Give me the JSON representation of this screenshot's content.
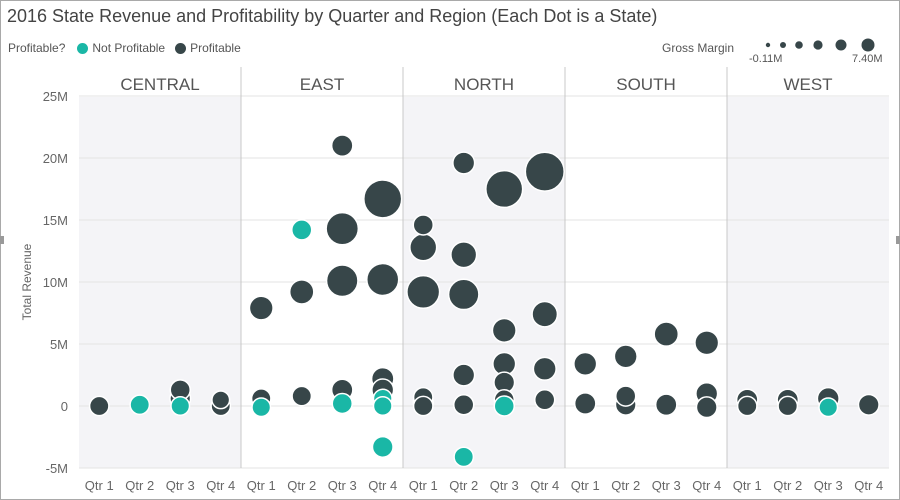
{
  "header": {
    "title": "2016 State Revenue and Profitability by Quarter and Region (Each Dot is a State)"
  },
  "legend": {
    "label": "Profitable?",
    "items": [
      {
        "label": "Not Profitable",
        "color": "#1ab7a6"
      },
      {
        "label": "Profitable",
        "color": "#374649"
      }
    ]
  },
  "size_legend": {
    "title": "Gross Margin",
    "min_label": "-0.11M",
    "max_label": "7.40M"
  },
  "chart_data": {
    "type": "scatter",
    "title": "2016 State Revenue and Profitability by Quarter and Region (Each Dot is a State)",
    "ylabel": "Total Revenue",
    "ylim": [
      -5000000,
      25000000
    ],
    "yticks": [
      -5000000,
      0,
      5000000,
      10000000,
      15000000,
      20000000,
      25000000
    ],
    "ytick_labels": [
      "-5M",
      "0",
      "5M",
      "10M",
      "15M",
      "20M",
      "25M"
    ],
    "grid": true,
    "legend_position": "top-left",
    "regions": [
      "CENTRAL",
      "EAST",
      "NORTH",
      "SOUTH",
      "WEST"
    ],
    "quarters": [
      "Qtr 1",
      "Qtr 2",
      "Qtr 3",
      "Qtr 4"
    ],
    "colors": {
      "profitable": "#374649",
      "not_profitable": "#1ab7a6",
      "shade": "#f4f4f7"
    },
    "points": [
      {
        "region": "CENTRAL",
        "quarter": "Qtr 1",
        "revenue": 0,
        "profitable": true,
        "gross_margin": 0.4
      },
      {
        "region": "CENTRAL",
        "quarter": "Qtr 2",
        "revenue": 100000,
        "profitable": false,
        "gross_margin": 0.4
      },
      {
        "region": "CENTRAL",
        "quarter": "Qtr 3",
        "revenue": 1300000,
        "profitable": true,
        "gross_margin": 0.5
      },
      {
        "region": "CENTRAL",
        "quarter": "Qtr 3",
        "revenue": 600000,
        "profitable": true,
        "gross_margin": 0.6
      },
      {
        "region": "CENTRAL",
        "quarter": "Qtr 3",
        "revenue": 0,
        "profitable": false,
        "gross_margin": 0.3
      },
      {
        "region": "CENTRAL",
        "quarter": "Qtr 4",
        "revenue": 500000,
        "profitable": true,
        "gross_margin": 0.2
      },
      {
        "region": "CENTRAL",
        "quarter": "Qtr 4",
        "revenue": 0,
        "profitable": true,
        "gross_margin": 0.4
      },
      {
        "region": "EAST",
        "quarter": "Qtr 1",
        "revenue": 7900000,
        "profitable": true,
        "gross_margin": 1.2
      },
      {
        "region": "EAST",
        "quarter": "Qtr 1",
        "revenue": 600000,
        "profitable": true,
        "gross_margin": 0.4
      },
      {
        "region": "EAST",
        "quarter": "Qtr 1",
        "revenue": -100000,
        "profitable": false,
        "gross_margin": 0.3
      },
      {
        "region": "EAST",
        "quarter": "Qtr 2",
        "revenue": 14200000,
        "profitable": false,
        "gross_margin": 0.5
      },
      {
        "region": "EAST",
        "quarter": "Qtr 2",
        "revenue": 9200000,
        "profitable": true,
        "gross_margin": 1.3
      },
      {
        "region": "EAST",
        "quarter": "Qtr 2",
        "revenue": 800000,
        "profitable": true,
        "gross_margin": 0.4
      },
      {
        "region": "EAST",
        "quarter": "Qtr 3",
        "revenue": 21000000,
        "profitable": true,
        "gross_margin": 0.7
      },
      {
        "region": "EAST",
        "quarter": "Qtr 3",
        "revenue": 14300000,
        "profitable": true,
        "gross_margin": 3.8
      },
      {
        "region": "EAST",
        "quarter": "Qtr 3",
        "revenue": 10100000,
        "profitable": true,
        "gross_margin": 3.5
      },
      {
        "region": "EAST",
        "quarter": "Qtr 3",
        "revenue": 1300000,
        "profitable": true,
        "gross_margin": 0.7
      },
      {
        "region": "EAST",
        "quarter": "Qtr 3",
        "revenue": 200000,
        "profitable": false,
        "gross_margin": 0.5
      },
      {
        "region": "EAST",
        "quarter": "Qtr 4",
        "revenue": 16700000,
        "profitable": true,
        "gross_margin": 6.3
      },
      {
        "region": "EAST",
        "quarter": "Qtr 4",
        "revenue": 10200000,
        "profitable": true,
        "gross_margin": 3.7
      },
      {
        "region": "EAST",
        "quarter": "Qtr 4",
        "revenue": 2200000,
        "profitable": true,
        "gross_margin": 0.9
      },
      {
        "region": "EAST",
        "quarter": "Qtr 4",
        "revenue": 1300000,
        "profitable": true,
        "gross_margin": 0.8
      },
      {
        "region": "EAST",
        "quarter": "Qtr 4",
        "revenue": 600000,
        "profitable": false,
        "gross_margin": 0.3
      },
      {
        "region": "EAST",
        "quarter": "Qtr 4",
        "revenue": 0,
        "profitable": false,
        "gross_margin": 0.3
      },
      {
        "region": "EAST",
        "quarter": "Qtr 4",
        "revenue": -3300000,
        "profitable": false,
        "gross_margin": 0.6
      },
      {
        "region": "NORTH",
        "quarter": "Qtr 1",
        "revenue": 14600000,
        "profitable": true,
        "gross_margin": 0.5
      },
      {
        "region": "NORTH",
        "quarter": "Qtr 1",
        "revenue": 12800000,
        "profitable": true,
        "gross_margin": 2.0
      },
      {
        "region": "NORTH",
        "quarter": "Qtr 1",
        "revenue": 9200000,
        "profitable": true,
        "gross_margin": 4.0
      },
      {
        "region": "NORTH",
        "quarter": "Qtr 1",
        "revenue": 700000,
        "profitable": true,
        "gross_margin": 0.4
      },
      {
        "region": "NORTH",
        "quarter": "Qtr 1",
        "revenue": 300000,
        "profitable": false,
        "gross_margin": 0.5
      },
      {
        "region": "NORTH",
        "quarter": "Qtr 1",
        "revenue": 0,
        "profitable": true,
        "gross_margin": 0.4
      },
      {
        "region": "NORTH",
        "quarter": "Qtr 2",
        "revenue": 19600000,
        "profitable": true,
        "gross_margin": 0.8
      },
      {
        "region": "NORTH",
        "quarter": "Qtr 2",
        "revenue": 12200000,
        "profitable": true,
        "gross_margin": 1.7
      },
      {
        "region": "NORTH",
        "quarter": "Qtr 2",
        "revenue": 9000000,
        "profitable": true,
        "gross_margin": 3.1
      },
      {
        "region": "NORTH",
        "quarter": "Qtr 2",
        "revenue": 2500000,
        "profitable": true,
        "gross_margin": 0.8
      },
      {
        "region": "NORTH",
        "quarter": "Qtr 2",
        "revenue": 100000,
        "profitable": true,
        "gross_margin": 0.5
      },
      {
        "region": "NORTH",
        "quarter": "Qtr 2",
        "revenue": -4100000,
        "profitable": false,
        "gross_margin": 0.4
      },
      {
        "region": "NORTH",
        "quarter": "Qtr 3",
        "revenue": 17500000,
        "profitable": true,
        "gross_margin": 5.8
      },
      {
        "region": "NORTH",
        "quarter": "Qtr 3",
        "revenue": 6100000,
        "profitable": true,
        "gross_margin": 1.2
      },
      {
        "region": "NORTH",
        "quarter": "Qtr 3",
        "revenue": 3400000,
        "profitable": true,
        "gross_margin": 1.0
      },
      {
        "region": "NORTH",
        "quarter": "Qtr 3",
        "revenue": 1900000,
        "profitable": true,
        "gross_margin": 0.6
      },
      {
        "region": "NORTH",
        "quarter": "Qtr 3",
        "revenue": 500000,
        "profitable": true,
        "gross_margin": 0.5
      },
      {
        "region": "NORTH",
        "quarter": "Qtr 3",
        "revenue": 0,
        "profitable": false,
        "gross_margin": 0.5
      },
      {
        "region": "NORTH",
        "quarter": "Qtr 4",
        "revenue": 18900000,
        "profitable": true,
        "gross_margin": 6.8
      },
      {
        "region": "NORTH",
        "quarter": "Qtr 4",
        "revenue": 7400000,
        "profitable": true,
        "gross_margin": 1.6
      },
      {
        "region": "NORTH",
        "quarter": "Qtr 4",
        "revenue": 3000000,
        "profitable": true,
        "gross_margin": 1.0
      },
      {
        "region": "NORTH",
        "quarter": "Qtr 4",
        "revenue": 500000,
        "profitable": true,
        "gross_margin": 0.5
      },
      {
        "region": "SOUTH",
        "quarter": "Qtr 1",
        "revenue": 3400000,
        "profitable": true,
        "gross_margin": 1.0
      },
      {
        "region": "SOUTH",
        "quarter": "Qtr 1",
        "revenue": 200000,
        "profitable": true,
        "gross_margin": 0.7
      },
      {
        "region": "SOUTH",
        "quarter": "Qtr 2",
        "revenue": 4000000,
        "profitable": true,
        "gross_margin": 1.0
      },
      {
        "region": "SOUTH",
        "quarter": "Qtr 2",
        "revenue": 800000,
        "profitable": true,
        "gross_margin": 0.5
      },
      {
        "region": "SOUTH",
        "quarter": "Qtr 2",
        "revenue": 100000,
        "profitable": true,
        "gross_margin": 0.6
      },
      {
        "region": "SOUTH",
        "quarter": "Qtr 3",
        "revenue": 5800000,
        "profitable": true,
        "gross_margin": 1.3
      },
      {
        "region": "SOUTH",
        "quarter": "Qtr 3",
        "revenue": 100000,
        "profitable": true,
        "gross_margin": 0.7
      },
      {
        "region": "SOUTH",
        "quarter": "Qtr 4",
        "revenue": 5100000,
        "profitable": true,
        "gross_margin": 1.2
      },
      {
        "region": "SOUTH",
        "quarter": "Qtr 4",
        "revenue": 1000000,
        "profitable": true,
        "gross_margin": 0.8
      },
      {
        "region": "SOUTH",
        "quarter": "Qtr 4",
        "revenue": -100000,
        "profitable": true,
        "gross_margin": 0.6
      },
      {
        "region": "WEST",
        "quarter": "Qtr 1",
        "revenue": 500000,
        "profitable": true,
        "gross_margin": 0.7
      },
      {
        "region": "WEST",
        "quarter": "Qtr 1",
        "revenue": 0,
        "profitable": true,
        "gross_margin": 0.4
      },
      {
        "region": "WEST",
        "quarter": "Qtr 2",
        "revenue": 500000,
        "profitable": true,
        "gross_margin": 0.7
      },
      {
        "region": "WEST",
        "quarter": "Qtr 2",
        "revenue": 0,
        "profitable": true,
        "gross_margin": 0.4
      },
      {
        "region": "WEST",
        "quarter": "Qtr 3",
        "revenue": 600000,
        "profitable": true,
        "gross_margin": 0.8
      },
      {
        "region": "WEST",
        "quarter": "Qtr 3",
        "revenue": -100000,
        "profitable": false,
        "gross_margin": 0.3
      },
      {
        "region": "WEST",
        "quarter": "Qtr 4",
        "revenue": 100000,
        "profitable": true,
        "gross_margin": 0.6
      }
    ]
  }
}
